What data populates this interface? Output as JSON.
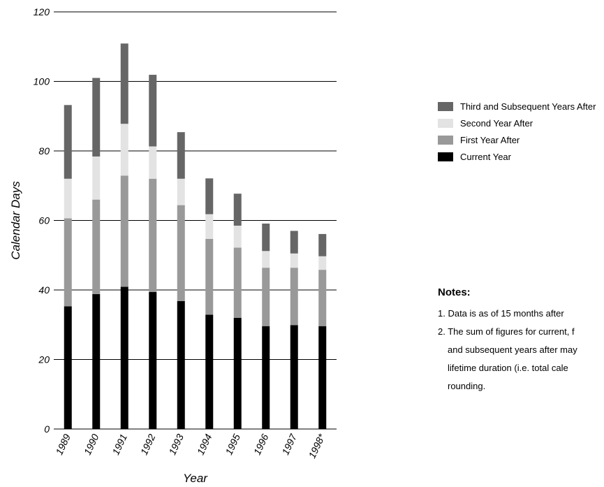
{
  "chart_data": {
    "type": "bar",
    "stacked": true,
    "categories": [
      "1989",
      "1990",
      "1991",
      "1992",
      "1993",
      "1994",
      "1995",
      "1996",
      "1997",
      "1998*"
    ],
    "series": [
      {
        "name": "Current Year",
        "color": "#000000",
        "values": [
          35.3,
          38.8,
          40.9,
          39.4,
          36.8,
          32.9,
          32.0,
          29.6,
          29.9,
          29.6
        ]
      },
      {
        "name": "First Year After",
        "color": "#999999",
        "values": [
          25.3,
          27.2,
          32.0,
          32.6,
          27.6,
          21.8,
          20.2,
          16.8,
          16.5,
          16.2
        ]
      },
      {
        "name": "Second Year After",
        "color": "#e3e3e3",
        "values": [
          11.4,
          12.4,
          14.9,
          9.3,
          7.6,
          7.1,
          6.3,
          4.8,
          4.1,
          3.9
        ]
      },
      {
        "name": "Third and Subsequent Years After",
        "color": "#666666",
        "values": [
          21.2,
          22.6,
          23.1,
          20.6,
          13.4,
          10.3,
          9.2,
          7.9,
          6.5,
          6.4
        ]
      }
    ],
    "xlabel": "Year",
    "ylabel": "Calendar Days",
    "ylim": [
      0,
      120
    ],
    "yticks": [
      0,
      20,
      40,
      60,
      80,
      100,
      120
    ],
    "grid": true,
    "legend_position": "right"
  },
  "legend": {
    "items": [
      {
        "label": "Third and Subsequent Years After",
        "color": "#666666"
      },
      {
        "label": "Second Year After",
        "color": "#e3e3e3"
      },
      {
        "label": "First Year After",
        "color": "#999999"
      },
      {
        "label": "Current Year",
        "color": "#000000"
      }
    ]
  },
  "notes": {
    "title": "Notes:",
    "items": [
      [
        "1.  Data is as of 15 months after"
      ],
      [
        "2. The sum of figures for current, f",
        "and subsequent years after may",
        "lifetime duration (i.e. total cale",
        "rounding."
      ]
    ]
  }
}
